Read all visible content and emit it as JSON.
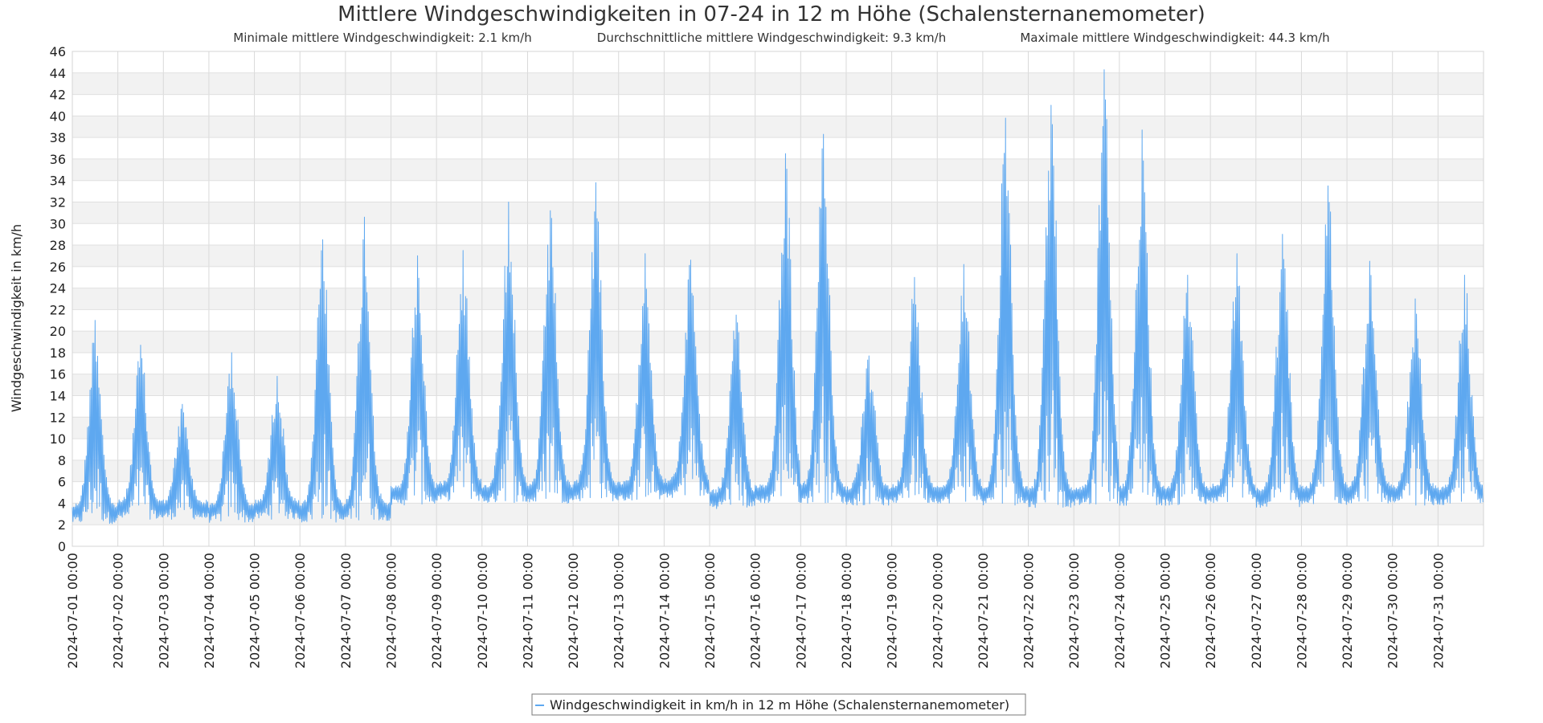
{
  "chart_data": {
    "type": "line",
    "title": "Mittlere Windgeschwindigkeiten in 07-24 in 12 m Höhe (Schalensternanemometer)",
    "subtitle": {
      "min": "Minimale mittlere Windgeschwindigkeit: 2.1 km/h",
      "avg": "Durchschnittliche mittlere Windgeschwindigkeit: 9.3 km/h",
      "max": "Maximale mittlere Windgeschwindigkeit: 44.3 km/h"
    },
    "xlabel": "",
    "ylabel": "Windgeschwindigkeit in km/h",
    "ylim": [
      0,
      46
    ],
    "yticks": [
      0,
      2,
      4,
      6,
      8,
      10,
      12,
      14,
      16,
      18,
      20,
      22,
      24,
      26,
      28,
      30,
      32,
      34,
      36,
      38,
      40,
      42,
      44,
      46
    ],
    "xlim": [
      "2024-07-01 00:00",
      "2024-08-01 00:00"
    ],
    "xticks": [
      "2024-07-01 00:00",
      "2024-07-02 00:00",
      "2024-07-03 00:00",
      "2024-07-04 00:00",
      "2024-07-05 00:00",
      "2024-07-06 00:00",
      "2024-07-07 00:00",
      "2024-07-08 00:00",
      "2024-07-09 00:00",
      "2024-07-10 00:00",
      "2024-07-11 00:00",
      "2024-07-12 00:00",
      "2024-07-13 00:00",
      "2024-07-14 00:00",
      "2024-07-15 00:00",
      "2024-07-16 00:00",
      "2024-07-17 00:00",
      "2024-07-18 00:00",
      "2024-07-19 00:00",
      "2024-07-20 00:00",
      "2024-07-21 00:00",
      "2024-07-22 00:00",
      "2024-07-23 00:00",
      "2024-07-24 00:00",
      "2024-07-25 00:00",
      "2024-07-26 00:00",
      "2024-07-27 00:00",
      "2024-07-28 00:00",
      "2024-07-29 00:00",
      "2024-07-30 00:00",
      "2024-07-31 00:00"
    ],
    "grid": true,
    "legend_position": "bottom-center",
    "series": [
      {
        "name": "Windgeschwindigkeit in km/h in 12 m Höhe (Schalensternanemometer)",
        "color": "#5ea8f0",
        "daily_envelope": {
          "x": [
            "2024-07-01",
            "2024-07-02",
            "2024-07-03",
            "2024-07-04",
            "2024-07-05",
            "2024-07-06",
            "2024-07-07",
            "2024-07-08",
            "2024-07-09",
            "2024-07-10",
            "2024-07-11",
            "2024-07-12",
            "2024-07-13",
            "2024-07-14",
            "2024-07-15",
            "2024-07-16",
            "2024-07-17",
            "2024-07-18",
            "2024-07-19",
            "2024-07-20",
            "2024-07-21",
            "2024-07-22",
            "2024-07-23",
            "2024-07-24",
            "2024-07-25",
            "2024-07-26",
            "2024-07-27",
            "2024-07-28",
            "2024-07-29",
            "2024-07-30",
            "2024-07-31"
          ],
          "min": [
            2.1,
            2.5,
            2.5,
            2.2,
            2.5,
            2.2,
            2.4,
            3.8,
            4.2,
            4.0,
            4.0,
            4.2,
            4.2,
            4.5,
            3.5,
            4.0,
            4.0,
            3.8,
            4.0,
            4.0,
            3.8,
            3.6,
            3.8,
            3.8,
            3.8,
            4.0,
            3.6,
            3.8,
            4.0,
            3.8,
            3.8
          ],
          "max": [
            21.0,
            18.7,
            13.2,
            18.0,
            15.8,
            28.5,
            30.6,
            27.0,
            27.5,
            32.0,
            31.2,
            33.8,
            27.2,
            26.6,
            21.5,
            36.5,
            38.3,
            17.7,
            25.0,
            26.2,
            39.8,
            41.0,
            44.3,
            38.7,
            25.2,
            27.2,
            29.0,
            33.5,
            26.5,
            23.0,
            25.2
          ],
          "peak_hour": [
            12,
            12,
            10,
            12,
            12,
            12,
            10,
            14,
            14,
            14,
            12,
            12,
            14,
            14,
            14,
            16,
            12,
            12,
            12,
            14,
            12,
            12,
            16,
            12,
            12,
            14,
            14,
            14,
            12,
            12,
            14
          ]
        }
      }
    ]
  }
}
